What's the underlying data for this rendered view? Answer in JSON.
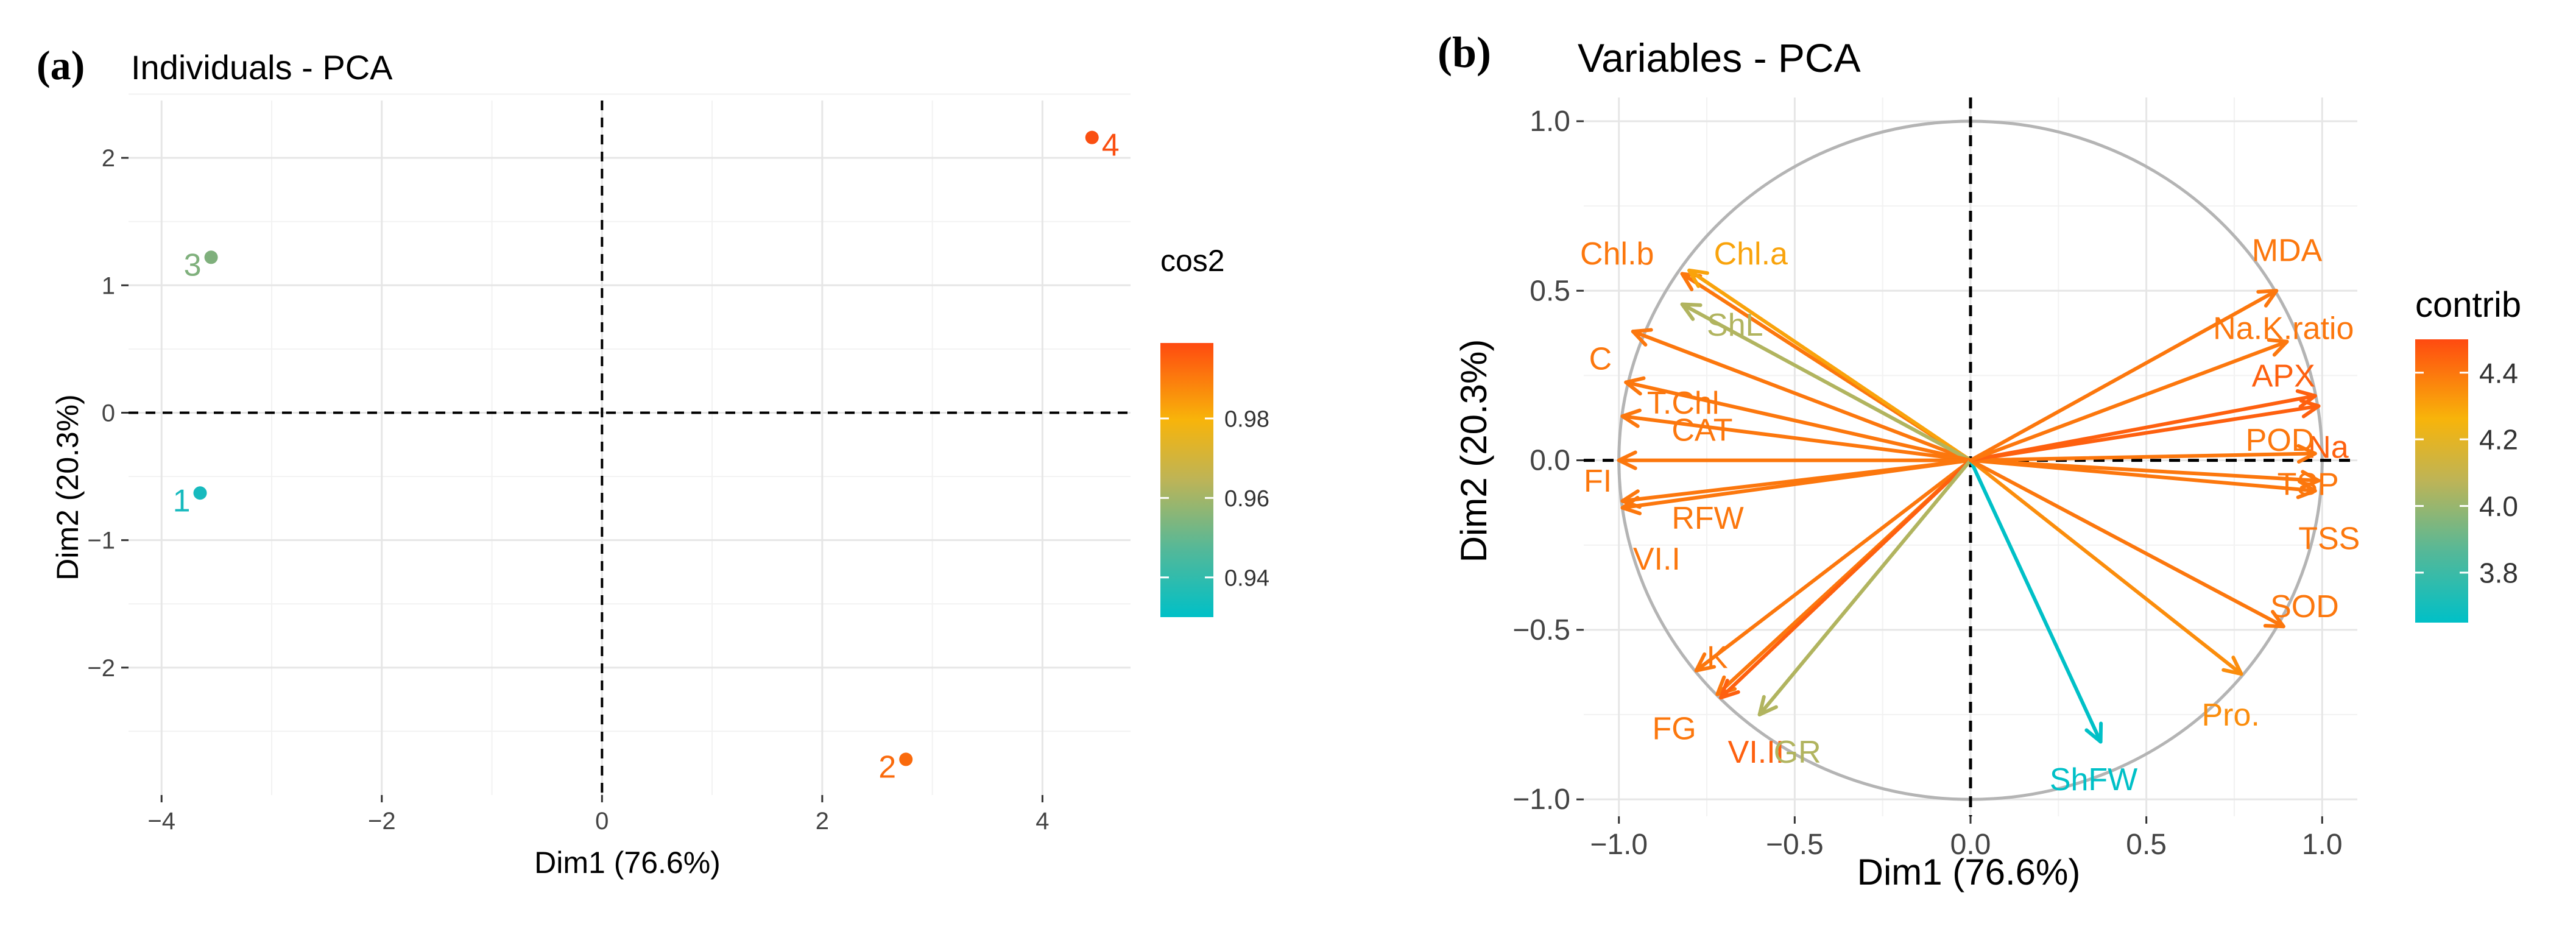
{
  "chart_data": [
    {
      "panel": "(a)",
      "type": "scatter",
      "title": "Individuals - PCA",
      "xlabel": "Dim1 (76.6%)",
      "ylabel": "Dim2 (20.3%)",
      "xlim": [
        -4.3,
        4.8
      ],
      "ylim": [
        -3.0,
        2.45
      ],
      "xticks": [
        -4,
        -2,
        0,
        2,
        4
      ],
      "yticks": [
        -2,
        -1,
        0,
        1,
        2
      ],
      "xtick_labels": [
        "−4",
        "−2",
        "0",
        "2",
        "4"
      ],
      "ytick_labels": [
        "−2",
        "−1",
        "0",
        "1",
        "2"
      ],
      "grid": true,
      "legend": {
        "title": "cos2",
        "placement": "right",
        "range": [
          0.93,
          0.999
        ],
        "ticks": [
          0.94,
          0.96,
          0.98
        ],
        "tick_labels": [
          "0.94",
          "0.96",
          "0.98"
        ]
      },
      "points": [
        {
          "label": "1",
          "x": -3.65,
          "y": -0.63,
          "cos2": 0.931,
          "color": "#17BABE"
        },
        {
          "label": "2",
          "x": 2.76,
          "y": -2.72,
          "cos2": 0.988,
          "color": "#FA6A0C"
        },
        {
          "label": "3",
          "x": -3.55,
          "y": 1.22,
          "cos2": 0.944,
          "color": "#7FB07C"
        },
        {
          "label": "4",
          "x": 4.45,
          "y": 2.16,
          "cos2": 0.998,
          "color": "#FA4F11"
        }
      ]
    },
    {
      "panel": "(b)",
      "type": "scatter",
      "subtype": "correlation-circle",
      "title": "Variables - PCA",
      "xlabel": "Dim1 (76.6%)",
      "ylabel": "Dim2 (20.3%)",
      "xlim": [
        -1.1,
        1.1
      ],
      "ylim": [
        -1.05,
        1.07
      ],
      "xticks": [
        -1.0,
        -0.5,
        0.0,
        0.5,
        1.0
      ],
      "yticks": [
        -1.0,
        -0.5,
        0.0,
        0.5,
        1.0
      ],
      "xtick_labels": [
        "−1.0",
        "−0.5",
        "0.0",
        "0.5",
        "1.0"
      ],
      "ytick_labels": [
        "−1.0",
        "−0.5",
        "0.0",
        "0.5",
        "1.0"
      ],
      "grid": true,
      "legend": {
        "title": "contrib",
        "placement": "right",
        "range": [
          3.65,
          4.5
        ],
        "ticks": [
          3.8,
          4.0,
          4.2,
          4.4
        ],
        "tick_labels": [
          "3.8",
          "4.0",
          "4.2",
          "4.4"
        ]
      },
      "vectors": [
        {
          "name": "Chl.b",
          "x": -0.82,
          "y": 0.55,
          "contrib": 4.4
        },
        {
          "name": "Chl.a",
          "x": -0.8,
          "y": 0.56,
          "contrib": 4.3
        },
        {
          "name": "C",
          "x": -0.96,
          "y": 0.38,
          "contrib": 4.4
        },
        {
          "name": "ShL",
          "x": -0.82,
          "y": 0.46,
          "contrib": 4.05
        },
        {
          "name": "T.Chl",
          "x": -0.98,
          "y": 0.23,
          "contrib": 4.4
        },
        {
          "name": "CAT",
          "x": -0.99,
          "y": 0.13,
          "contrib": 4.4
        },
        {
          "name": "FI",
          "x": -1.0,
          "y": 0.0,
          "contrib": 4.4
        },
        {
          "name": "RFW",
          "x": -0.99,
          "y": -0.12,
          "contrib": 4.4
        },
        {
          "name": "VI.I",
          "x": -0.99,
          "y": -0.14,
          "contrib": 4.4
        },
        {
          "name": "K",
          "x": -0.78,
          "y": -0.62,
          "contrib": 4.4
        },
        {
          "name": "FG",
          "x": -0.72,
          "y": -0.69,
          "contrib": 4.4
        },
        {
          "name": "VI.II",
          "x": -0.71,
          "y": -0.7,
          "contrib": 4.45
        },
        {
          "name": "GR",
          "x": -0.6,
          "y": -0.75,
          "contrib": 4.05
        },
        {
          "name": "ShFW",
          "x": 0.37,
          "y": -0.83,
          "contrib": 3.65
        },
        {
          "name": "Pro.",
          "x": 0.77,
          "y": -0.63,
          "contrib": 4.35
        },
        {
          "name": "SOD",
          "x": 0.89,
          "y": -0.49,
          "contrib": 4.4
        },
        {
          "name": "TSS",
          "x": 0.98,
          "y": -0.09,
          "contrib": 4.4
        },
        {
          "name": "TSP",
          "x": 0.99,
          "y": -0.06,
          "contrib": 4.4
        },
        {
          "name": "Na",
          "x": 0.99,
          "y": 0.16,
          "contrib": 4.45
        },
        {
          "name": "POD",
          "x": 0.98,
          "y": 0.02,
          "contrib": 4.4
        },
        {
          "name": "APX",
          "x": 0.98,
          "y": 0.19,
          "contrib": 4.45
        },
        {
          "name": "Na.K.ratio",
          "x": 0.9,
          "y": 0.35,
          "contrib": 4.4
        },
        {
          "name": "MDA",
          "x": 0.87,
          "y": 0.5,
          "contrib": 4.4
        }
      ]
    }
  ]
}
